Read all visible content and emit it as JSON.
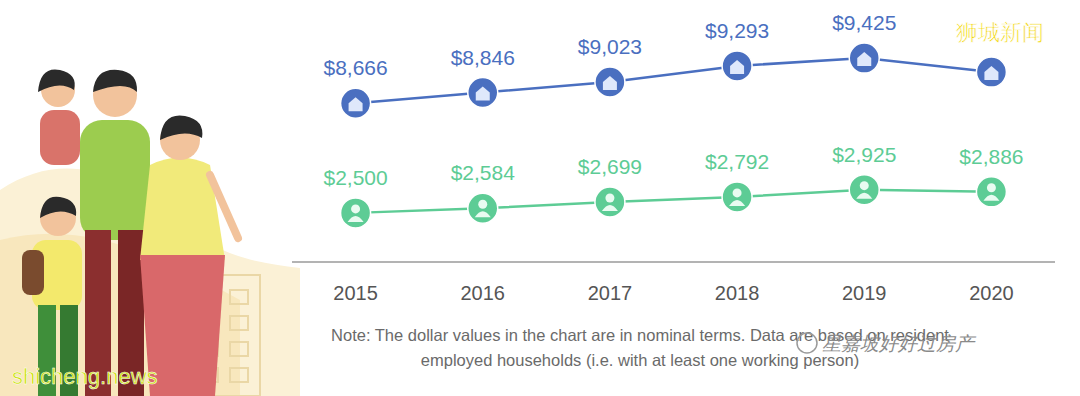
{
  "chart_data": {
    "type": "line",
    "categories": [
      "2015",
      "2016",
      "2017",
      "2018",
      "2019",
      "2020"
    ],
    "series": [
      {
        "color": "#4a6fc0",
        "values": [
          8666,
          8846,
          9023,
          9293,
          9425,
          9189
        ],
        "value_labels": [
          "$8,666",
          "$8,846",
          "$9,023",
          "$9,293",
          "$9,425",
          null
        ],
        "axis": "y",
        "marker": "circle",
        "line_style": "solid"
      },
      {
        "color": "#5dcc95",
        "values": [
          2500,
          2584,
          2699,
          2792,
          2925,
          2886
        ],
        "value_labels": [
          "$2,500",
          "$2,584",
          "$2,699",
          "$2,792",
          "$2,925",
          "$2,886"
        ],
        "axis": "y2",
        "marker": "circle",
        "line_style": "solid"
      }
    ],
    "ylim": [
      6000,
      10400
    ],
    "y2lim": [
      1600,
      6400
    ],
    "data_labels": true,
    "tick_labels": "x",
    "grid": false,
    "note": [
      "Note: The dollar values in the chart are in nominal terms. Data are based on resident",
      "employed households (i.e. with at least one working person)"
    ],
    "watermarks": [
      "狮城新闻",
      "星嘉坡好好过房产",
      "shicheng.news"
    ]
  }
}
